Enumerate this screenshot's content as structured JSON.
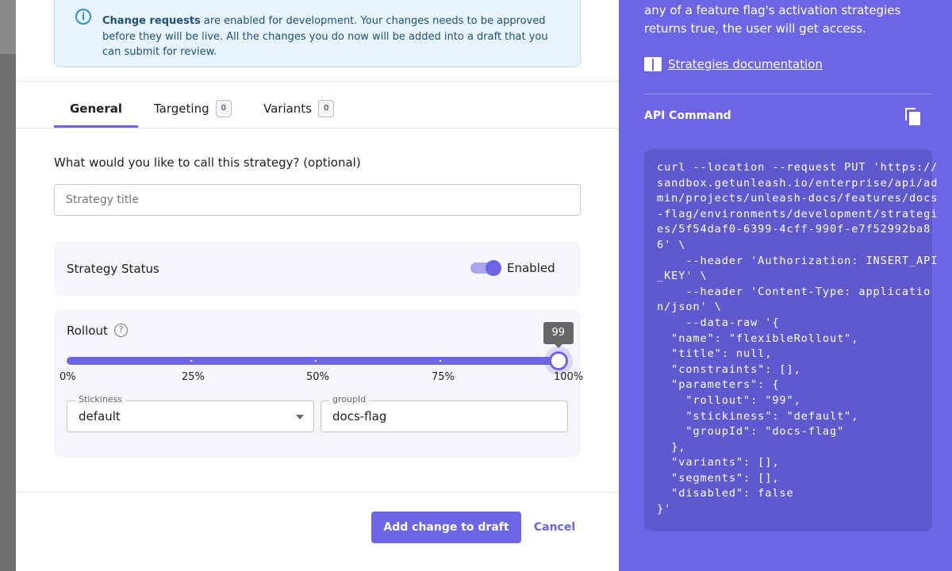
{
  "alert": {
    "bold": "Change requests",
    "text": " are enabled for development. Your changes needs to be approved before they will be live. All the changes you do now will be added into a draft that you can submit for review."
  },
  "tabs": [
    {
      "label": "General"
    },
    {
      "label": "Targeting",
      "count": "0"
    },
    {
      "label": "Variants",
      "count": "0"
    }
  ],
  "form": {
    "title_question": "What would you like to call this strategy? (optional)",
    "title_placeholder": "Strategy title",
    "title_value": ""
  },
  "status": {
    "label": "Strategy Status",
    "toggle_label": "Enabled",
    "enabled": true
  },
  "rollout": {
    "label": "Rollout",
    "value": 99,
    "tooltip": "99",
    "marks": [
      "0%",
      "25%",
      "50%",
      "75%",
      "100%"
    ]
  },
  "stickiness": {
    "label": "Stickiness",
    "value": "default"
  },
  "groupId": {
    "label": "groupId",
    "value": "docs-flag"
  },
  "actions": {
    "primary": "Add change to draft",
    "cancel": "Cancel"
  },
  "sidebar": {
    "description": "any of a feature flag's activation strategies returns true, the user will get access.",
    "doc_link": "Strategies documentation",
    "api_title": "API Command",
    "code": "curl --location --request PUT 'https://\nsandbox.getunleash.io/enterprise/api/ad\nmin/projects/unleash-docs/features/docs\n-flag/environments/development/strategi\nes/5f54daf0-6399-4cff-990f-e7f52992ba8\n6' \\\n    --header 'Authorization: INSERT_API\n_KEY' \\\n    --header 'Content-Type: applicatio\nn/json' \\\n    --data-raw '{\n  \"name\": \"flexibleRollout\",\n  \"title\": null,\n  \"constraints\": [],\n  \"parameters\": {\n    \"rollout\": \"99\",\n    \"stickiness\": \"default\",\n    \"groupId\": \"docs-flag\"\n  },\n  \"variants\": [],\n  \"segments\": [],\n  \"disabled\": false\n}'"
  },
  "colors": {
    "accent": "#6c65e5",
    "sidebar_bg": "#6c65e5",
    "code_bg": "#5f59d0",
    "alert_bg": "#e9f5fe"
  }
}
